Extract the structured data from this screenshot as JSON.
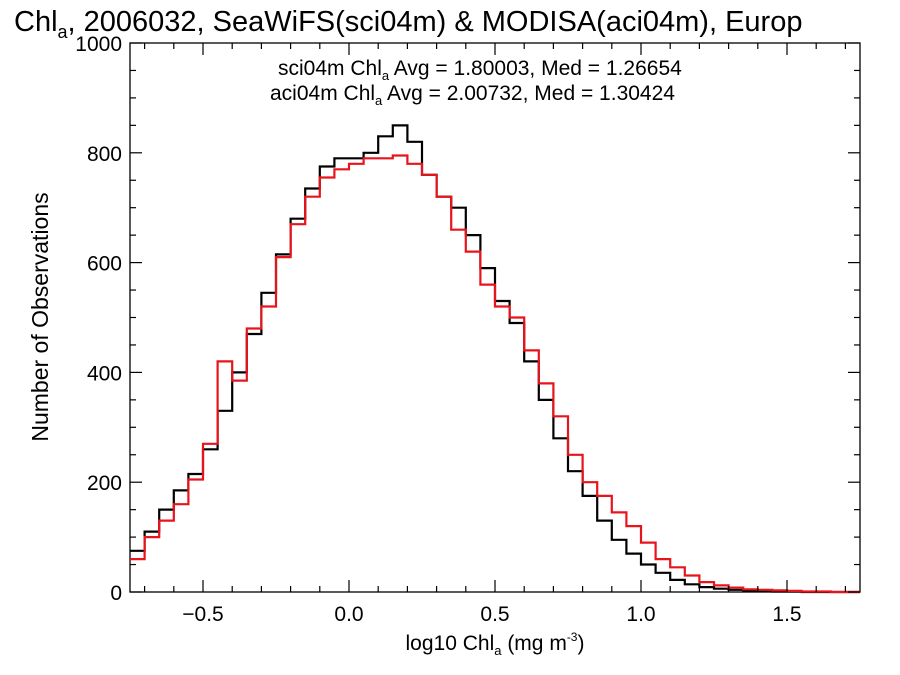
{
  "colors": {
    "series1": "#000000",
    "series2": "#e8141c",
    "axis": "#000000",
    "background": "#ffffff"
  },
  "title_parts": {
    "pre": "Chl",
    "sub": "a",
    "post": ", 2006032, SeaWiFS(sci04m) & MODISA(aci04m), Europ"
  },
  "xlabel_parts": {
    "pre": "log10 Chl",
    "sub": "a",
    "mid": " (mg m",
    "sup": "-3",
    "post": ")"
  },
  "ylabel": "Number of Observations",
  "stats": [
    {
      "pre": "sci04m Chl",
      "sub": "a",
      "post": " Avg = 1.80003, Med = 1.26654",
      "color": "#000000"
    },
    {
      "pre": "aci04m Chl",
      "sub": "a",
      "post": " Avg = 2.00732, Med = 1.30424",
      "color": "#e8141c"
    }
  ],
  "chart_data": {
    "type": "line",
    "title": "Chla, 2006032, SeaWiFS(sci04m) & MODISA(aci04m), Europ",
    "xlabel": "log10 Chla (mg m-3)",
    "ylabel": "Number of Observations",
    "xlim": [
      -0.75,
      1.75
    ],
    "ylim": [
      0,
      1000
    ],
    "xticks": [
      -0.5,
      0.0,
      0.5,
      1.0,
      1.5
    ],
    "xtick_labels": [
      "−0.5",
      "0.0",
      "0.5",
      "1.0",
      "1.5"
    ],
    "yticks": [
      0,
      200,
      400,
      600,
      800,
      1000
    ],
    "ytick_labels": [
      "0",
      "200",
      "400",
      "600",
      "800",
      "1000"
    ],
    "x_minor_step": 0.1,
    "y_minor_step": 50,
    "grid": false,
    "legend": "top-center text annotations",
    "series": [
      {
        "style": "step",
        "color": "#000000",
        "x": [
          -0.75,
          -0.7,
          -0.65,
          -0.6,
          -0.55,
          -0.5,
          -0.45,
          -0.4,
          -0.35,
          -0.3,
          -0.25,
          -0.2,
          -0.15,
          -0.1,
          -0.05,
          0.0,
          0.05,
          0.1,
          0.15,
          0.2,
          0.25,
          0.3,
          0.35,
          0.4,
          0.45,
          0.5,
          0.55,
          0.6,
          0.65,
          0.7,
          0.75,
          0.8,
          0.85,
          0.9,
          0.95,
          1.0,
          1.05,
          1.1,
          1.15,
          1.2,
          1.25,
          1.3,
          1.35,
          1.4,
          1.45,
          1.5,
          1.55,
          1.6,
          1.65,
          1.7,
          1.75
        ],
        "y": [
          75,
          110,
          150,
          185,
          215,
          260,
          330,
          400,
          470,
          545,
          615,
          680,
          735,
          775,
          790,
          790,
          800,
          830,
          850,
          820,
          760,
          720,
          700,
          650,
          590,
          530,
          490,
          420,
          350,
          280,
          220,
          175,
          130,
          95,
          70,
          50,
          35,
          22,
          14,
          9,
          6,
          4,
          3,
          2,
          1,
          1,
          0,
          0,
          0,
          0,
          0
        ]
      },
      {
        "style": "step",
        "color": "#e8141c",
        "x": [
          -0.75,
          -0.7,
          -0.65,
          -0.6,
          -0.55,
          -0.5,
          -0.45,
          -0.4,
          -0.35,
          -0.3,
          -0.25,
          -0.2,
          -0.15,
          -0.1,
          -0.05,
          0.0,
          0.05,
          0.1,
          0.15,
          0.2,
          0.25,
          0.3,
          0.35,
          0.4,
          0.45,
          0.5,
          0.55,
          0.6,
          0.65,
          0.7,
          0.75,
          0.8,
          0.85,
          0.9,
          0.95,
          1.0,
          1.05,
          1.1,
          1.15,
          1.2,
          1.25,
          1.3,
          1.35,
          1.4,
          1.45,
          1.5,
          1.55,
          1.6,
          1.65,
          1.7,
          1.75
        ],
        "y": [
          60,
          100,
          130,
          160,
          205,
          270,
          420,
          385,
          480,
          520,
          610,
          670,
          720,
          755,
          770,
          780,
          790,
          790,
          795,
          780,
          760,
          720,
          660,
          620,
          560,
          520,
          500,
          440,
          380,
          320,
          250,
          200,
          175,
          145,
          120,
          90,
          60,
          45,
          30,
          18,
          12,
          8,
          5,
          4,
          3,
          2,
          1,
          1,
          0,
          0,
          0
        ]
      }
    ]
  }
}
